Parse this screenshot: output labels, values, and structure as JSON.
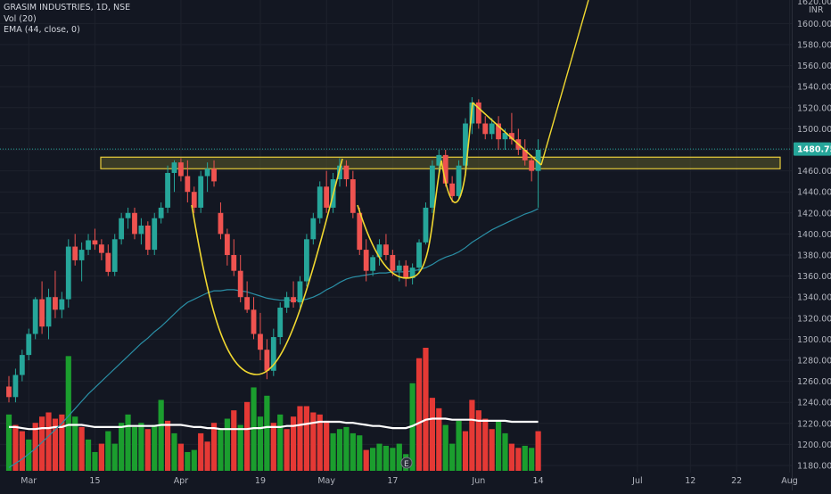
{
  "legend": {
    "symbol": "GRASIM INDUSTRIES, 1D, NSE",
    "volume": "Vol (20)",
    "ema": "EMA (44, close, 0)"
  },
  "price_axis": {
    "currency": "INR",
    "top_label": "1620.00",
    "current_price": "1480.75"
  },
  "colors": {
    "background": "#131722",
    "up": "#26a69a",
    "down": "#ef5350",
    "volume_up": "#1b9e2e",
    "volume_down": "#e53935",
    "ema": "#2a8fa6",
    "volume_ma": "#ffffff",
    "pattern": "#f1d830",
    "zone_fill": "#5b5a2a",
    "zone_border": "#e8cc3b",
    "price_tag": "#26a69a"
  },
  "chart_data": {
    "type": "candlestick",
    "symbol": "GRASIM INDUSTRIES",
    "interval": "1D",
    "exchange": "NSE",
    "currency": "INR",
    "ylim": [
      1172,
      1640
    ],
    "y_ticks": [
      1180,
      1200,
      1220,
      1240,
      1260,
      1280,
      1300,
      1320,
      1340,
      1360,
      1380,
      1400,
      1420,
      1440,
      1460,
      1480,
      1500,
      1520,
      1540,
      1560,
      1580,
      1600
    ],
    "x_ticks": [
      {
        "label": "Mar",
        "bar": 3
      },
      {
        "label": "15",
        "bar": 13
      },
      {
        "label": "Apr",
        "bar": 26
      },
      {
        "label": "19",
        "bar": 38
      },
      {
        "label": "May",
        "bar": 48
      },
      {
        "label": "17",
        "bar": 58
      },
      {
        "label": "Jun",
        "bar": 71
      },
      {
        "label": "14",
        "bar": 80
      },
      {
        "label": "Jul",
        "bar": 95
      },
      {
        "label": "12",
        "bar": 103
      },
      {
        "label": "22",
        "bar": 110
      },
      {
        "label": "Aug",
        "bar": 118
      }
    ],
    "last_price": 1480.75,
    "candles": [
      [
        1255,
        1265,
        1240,
        1245
      ],
      [
        1245,
        1272,
        1240,
        1266
      ],
      [
        1266,
        1290,
        1260,
        1285
      ],
      [
        1285,
        1310,
        1280,
        1305
      ],
      [
        1305,
        1340,
        1300,
        1338
      ],
      [
        1338,
        1355,
        1305,
        1312
      ],
      [
        1312,
        1348,
        1300,
        1340
      ],
      [
        1340,
        1365,
        1320,
        1328
      ],
      [
        1328,
        1345,
        1320,
        1338
      ],
      [
        1338,
        1395,
        1330,
        1388
      ],
      [
        1388,
        1400,
        1370,
        1375
      ],
      [
        1375,
        1392,
        1355,
        1385
      ],
      [
        1385,
        1400,
        1380,
        1394
      ],
      [
        1394,
        1405,
        1385,
        1390
      ],
      [
        1390,
        1395,
        1375,
        1382
      ],
      [
        1382,
        1390,
        1360,
        1364
      ],
      [
        1364,
        1400,
        1360,
        1395
      ],
      [
        1395,
        1420,
        1390,
        1415
      ],
      [
        1415,
        1425,
        1405,
        1420
      ],
      [
        1420,
        1425,
        1395,
        1400
      ],
      [
        1400,
        1415,
        1390,
        1408
      ],
      [
        1408,
        1412,
        1380,
        1385
      ],
      [
        1385,
        1420,
        1380,
        1415
      ],
      [
        1415,
        1430,
        1410,
        1425
      ],
      [
        1425,
        1465,
        1420,
        1458
      ],
      [
        1458,
        1470,
        1440,
        1468
      ],
      [
        1468,
        1472,
        1450,
        1455
      ],
      [
        1455,
        1470,
        1430,
        1440
      ],
      [
        1440,
        1445,
        1420,
        1425
      ],
      [
        1425,
        1460,
        1420,
        1455
      ],
      [
        1455,
        1468,
        1440,
        1462
      ],
      [
        1462,
        1470,
        1445,
        1450
      ],
      [
        1420,
        1430,
        1395,
        1400
      ],
      [
        1400,
        1405,
        1370,
        1380
      ],
      [
        1380,
        1395,
        1360,
        1365
      ],
      [
        1365,
        1380,
        1335,
        1340
      ],
      [
        1340,
        1355,
        1325,
        1328
      ],
      [
        1328,
        1340,
        1300,
        1305
      ],
      [
        1305,
        1325,
        1280,
        1290
      ],
      [
        1290,
        1300,
        1262,
        1270
      ],
      [
        1270,
        1310,
        1265,
        1302
      ],
      [
        1302,
        1335,
        1295,
        1330
      ],
      [
        1330,
        1345,
        1325,
        1340
      ],
      [
        1340,
        1355,
        1330,
        1335
      ],
      [
        1335,
        1360,
        1330,
        1355
      ],
      [
        1355,
        1400,
        1350,
        1395
      ],
      [
        1395,
        1420,
        1390,
        1415
      ],
      [
        1415,
        1450,
        1410,
        1445
      ],
      [
        1445,
        1460,
        1420,
        1425
      ],
      [
        1425,
        1458,
        1420,
        1452
      ],
      [
        1452,
        1472,
        1445,
        1465
      ],
      [
        1465,
        1470,
        1445,
        1452
      ],
      [
        1452,
        1460,
        1415,
        1420
      ],
      [
        1420,
        1425,
        1380,
        1385
      ],
      [
        1385,
        1395,
        1355,
        1365
      ],
      [
        1365,
        1380,
        1360,
        1378
      ],
      [
        1378,
        1395,
        1370,
        1390
      ],
      [
        1390,
        1400,
        1375,
        1380
      ],
      [
        1380,
        1385,
        1360,
        1365
      ],
      [
        1365,
        1375,
        1355,
        1370
      ],
      [
        1370,
        1375,
        1350,
        1358
      ],
      [
        1358,
        1372,
        1352,
        1368
      ],
      [
        1368,
        1395,
        1362,
        1392
      ],
      [
        1392,
        1430,
        1390,
        1425
      ],
      [
        1425,
        1470,
        1420,
        1465
      ],
      [
        1465,
        1480,
        1455,
        1475
      ],
      [
        1475,
        1480,
        1445,
        1448
      ],
      [
        1448,
        1455,
        1430,
        1436
      ],
      [
        1436,
        1470,
        1432,
        1465
      ],
      [
        1465,
        1510,
        1460,
        1505
      ],
      [
        1505,
        1530,
        1495,
        1525
      ],
      [
        1525,
        1528,
        1500,
        1505
      ],
      [
        1505,
        1512,
        1490,
        1495
      ],
      [
        1495,
        1510,
        1490,
        1505
      ],
      [
        1505,
        1512,
        1480,
        1490
      ],
      [
        1490,
        1500,
        1480,
        1496
      ],
      [
        1496,
        1515,
        1485,
        1490
      ],
      [
        1490,
        1500,
        1475,
        1480
      ],
      [
        1480,
        1490,
        1465,
        1470
      ],
      [
        1470,
        1475,
        1450,
        1460
      ],
      [
        1460,
        1490,
        1425,
        1480
      ]
    ],
    "ema44": [
      1178,
      1182,
      1186,
      1191,
      1196,
      1202,
      1208,
      1214,
      1220,
      1227,
      1234,
      1241,
      1248,
      1254,
      1260,
      1266,
      1272,
      1278,
      1284,
      1290,
      1296,
      1301,
      1307,
      1312,
      1318,
      1324,
      1330,
      1335,
      1338,
      1341,
      1344,
      1346,
      1346,
      1347,
      1347,
      1346,
      1345,
      1343,
      1341,
      1339,
      1338,
      1337,
      1337,
      1337,
      1337,
      1338,
      1340,
      1343,
      1347,
      1350,
      1354,
      1357,
      1359,
      1360,
      1361,
      1362,
      1363,
      1363,
      1364,
      1364,
      1364,
      1365,
      1366,
      1368,
      1371,
      1375,
      1378,
      1380,
      1383,
      1387,
      1392,
      1396,
      1400,
      1404,
      1407,
      1410,
      1413,
      1416,
      1419,
      1421,
      1424
    ],
    "volume": [
      [
        54,
        1
      ],
      [
        44,
        0
      ],
      [
        38,
        0
      ],
      [
        30,
        1
      ],
      [
        46,
        0
      ],
      [
        52,
        0
      ],
      [
        56,
        0
      ],
      [
        50,
        0
      ],
      [
        54,
        0
      ],
      [
        110,
        1
      ],
      [
        52,
        1
      ],
      [
        42,
        0
      ],
      [
        30,
        1
      ],
      [
        18,
        1
      ],
      [
        26,
        0
      ],
      [
        38,
        1
      ],
      [
        26,
        1
      ],
      [
        46,
        1
      ],
      [
        54,
        1
      ],
      [
        42,
        1
      ],
      [
        46,
        1
      ],
      [
        40,
        0
      ],
      [
        44,
        1
      ],
      [
        68,
        1
      ],
      [
        48,
        0
      ],
      [
        36,
        1
      ],
      [
        26,
        0
      ],
      [
        18,
        1
      ],
      [
        20,
        1
      ],
      [
        36,
        0
      ],
      [
        28,
        0
      ],
      [
        46,
        0
      ],
      [
        40,
        1
      ],
      [
        50,
        1
      ],
      [
        58,
        0
      ],
      [
        44,
        1
      ],
      [
        66,
        0
      ],
      [
        80,
        1
      ],
      [
        52,
        1
      ],
      [
        72,
        1
      ],
      [
        46,
        0
      ],
      [
        54,
        1
      ],
      [
        40,
        0
      ],
      [
        52,
        0
      ],
      [
        62,
        0
      ],
      [
        62,
        0
      ],
      [
        56,
        0
      ],
      [
        54,
        0
      ],
      [
        48,
        0
      ],
      [
        36,
        1
      ],
      [
        40,
        1
      ],
      [
        42,
        1
      ],
      [
        36,
        1
      ],
      [
        34,
        1
      ],
      [
        20,
        0
      ],
      [
        22,
        1
      ],
      [
        26,
        1
      ],
      [
        24,
        1
      ],
      [
        22,
        1
      ],
      [
        26,
        1
      ],
      [
        16,
        1
      ],
      [
        84,
        1
      ],
      [
        108,
        0
      ],
      [
        118,
        0
      ],
      [
        70,
        0
      ],
      [
        60,
        0
      ],
      [
        44,
        1
      ],
      [
        26,
        1
      ],
      [
        48,
        1
      ],
      [
        38,
        0
      ],
      [
        68,
        0
      ],
      [
        58,
        0
      ],
      [
        50,
        0
      ],
      [
        40,
        0
      ],
      [
        48,
        1
      ],
      [
        36,
        1
      ],
      [
        26,
        0
      ],
      [
        22,
        0
      ],
      [
        24,
        1
      ],
      [
        22,
        1
      ],
      [
        38,
        0
      ]
    ],
    "volume_ma": [
      42,
      42,
      41,
      40,
      40,
      41,
      41,
      42,
      42,
      44,
      44,
      44,
      43,
      42,
      42,
      42,
      42,
      42,
      43,
      43,
      43,
      43,
      43,
      44,
      44,
      44,
      44,
      43,
      42,
      42,
      41,
      41,
      40,
      40,
      40,
      40,
      40,
      41,
      41,
      42,
      42,
      42,
      43,
      43,
      44,
      45,
      46,
      47,
      47,
      47,
      47,
      46,
      46,
      45,
      44,
      43,
      43,
      42,
      41,
      41,
      41,
      43,
      46,
      49,
      50,
      50,
      50,
      49,
      49,
      49,
      49,
      48,
      48,
      48,
      48,
      48,
      47,
      47,
      47,
      47,
      47
    ],
    "volume_scale_max": 118,
    "resistance_zone": [
      1462,
      1473
    ],
    "annotations": [
      "cup and handle pattern",
      "resistance zone",
      "breakout projection"
    ]
  }
}
